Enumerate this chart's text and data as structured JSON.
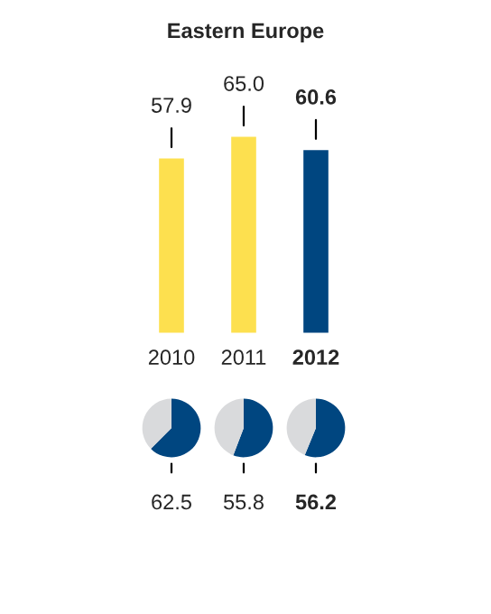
{
  "chart_data": [
    {
      "type": "bar",
      "title": "Eastern Europe",
      "categories": [
        "2010",
        "2011",
        "2012"
      ],
      "values": [
        57.9,
        65.0,
        60.6
      ],
      "colors": [
        "#fde04f",
        "#fde04f",
        "#004680"
      ],
      "value_labels": [
        "57.9",
        "65.0",
        "60.6"
      ]
    },
    {
      "type": "pie",
      "categories": [
        null,
        null
      ],
      "values": [
        62.5,
        37.5
      ],
      "colors": [
        "#004680",
        "#d9dadc"
      ],
      "value_labels": [
        "62.5",
        null
      ]
    },
    {
      "type": "pie",
      "categories": [
        null,
        null
      ],
      "values": [
        55.8,
        44.2
      ],
      "colors": [
        "#004680",
        "#d9dadc"
      ],
      "value_labels": [
        "55.8",
        null
      ]
    },
    {
      "type": "pie",
      "categories": [
        null,
        null
      ],
      "values": [
        56.2,
        43.8
      ],
      "colors": [
        "#004680",
        "#d9dadc"
      ],
      "value_labels": [
        "56.2",
        null
      ]
    }
  ]
}
